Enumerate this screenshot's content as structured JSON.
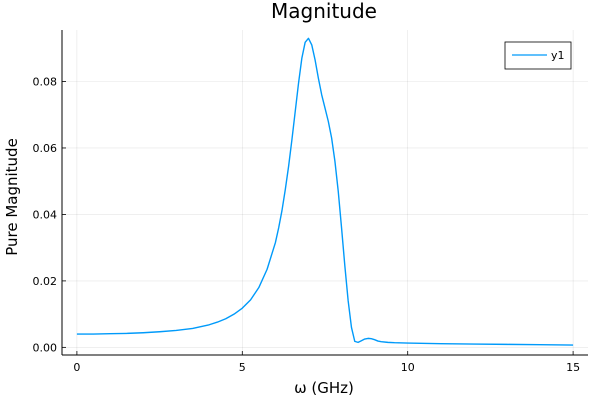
{
  "chart_data": {
    "type": "line",
    "title": "Magnitude",
    "xlabel": "ω (GHz)",
    "ylabel": "Pure Magnitude",
    "xlim": [
      -0.45,
      15.45
    ],
    "ylim": [
      -0.0023,
      0.0955
    ],
    "xticks": [
      0,
      5,
      10,
      15
    ],
    "xtick_labels": [
      "0",
      "5",
      "10",
      "15"
    ],
    "yticks": [
      0.0,
      0.02,
      0.04,
      0.06,
      0.08
    ],
    "ytick_labels": [
      "0.00",
      "0.02",
      "0.04",
      "0.06",
      "0.08"
    ],
    "grid": true,
    "legend_position": "top-right",
    "series": [
      {
        "name": "y1",
        "color": "#009AFA",
        "x": [
          0,
          0.5,
          1,
          1.5,
          2,
          2.5,
          3,
          3.5,
          4,
          4.25,
          4.5,
          4.75,
          5,
          5.25,
          5.5,
          5.75,
          6,
          6.1,
          6.2,
          6.3,
          6.4,
          6.5,
          6.6,
          6.7,
          6.8,
          6.9,
          7.0,
          7.1,
          7.2,
          7.3,
          7.4,
          7.5,
          7.6,
          7.7,
          7.8,
          7.9,
          8.0,
          8.1,
          8.2,
          8.3,
          8.4,
          8.5,
          8.6,
          8.7,
          8.8,
          8.9,
          9.0,
          9.1,
          9.2,
          9.4,
          9.6,
          10,
          11,
          12,
          13,
          14,
          15
        ],
        "y": [
          0.004,
          0.004,
          0.0041,
          0.0042,
          0.0044,
          0.0047,
          0.0051,
          0.0057,
          0.0068,
          0.0076,
          0.0086,
          0.01,
          0.0118,
          0.0143,
          0.018,
          0.0235,
          0.0315,
          0.036,
          0.0412,
          0.0475,
          0.0545,
          0.0625,
          0.071,
          0.0795,
          0.087,
          0.0918,
          0.093,
          0.091,
          0.0865,
          0.081,
          0.076,
          0.072,
          0.068,
          0.063,
          0.056,
          0.047,
          0.036,
          0.0245,
          0.014,
          0.006,
          0.0018,
          0.0015,
          0.002,
          0.0025,
          0.0027,
          0.0026,
          0.0023,
          0.0019,
          0.0017,
          0.0015,
          0.0014,
          0.0013,
          0.0011,
          0.001,
          0.0009,
          0.0008,
          0.0007
        ]
      }
    ]
  }
}
